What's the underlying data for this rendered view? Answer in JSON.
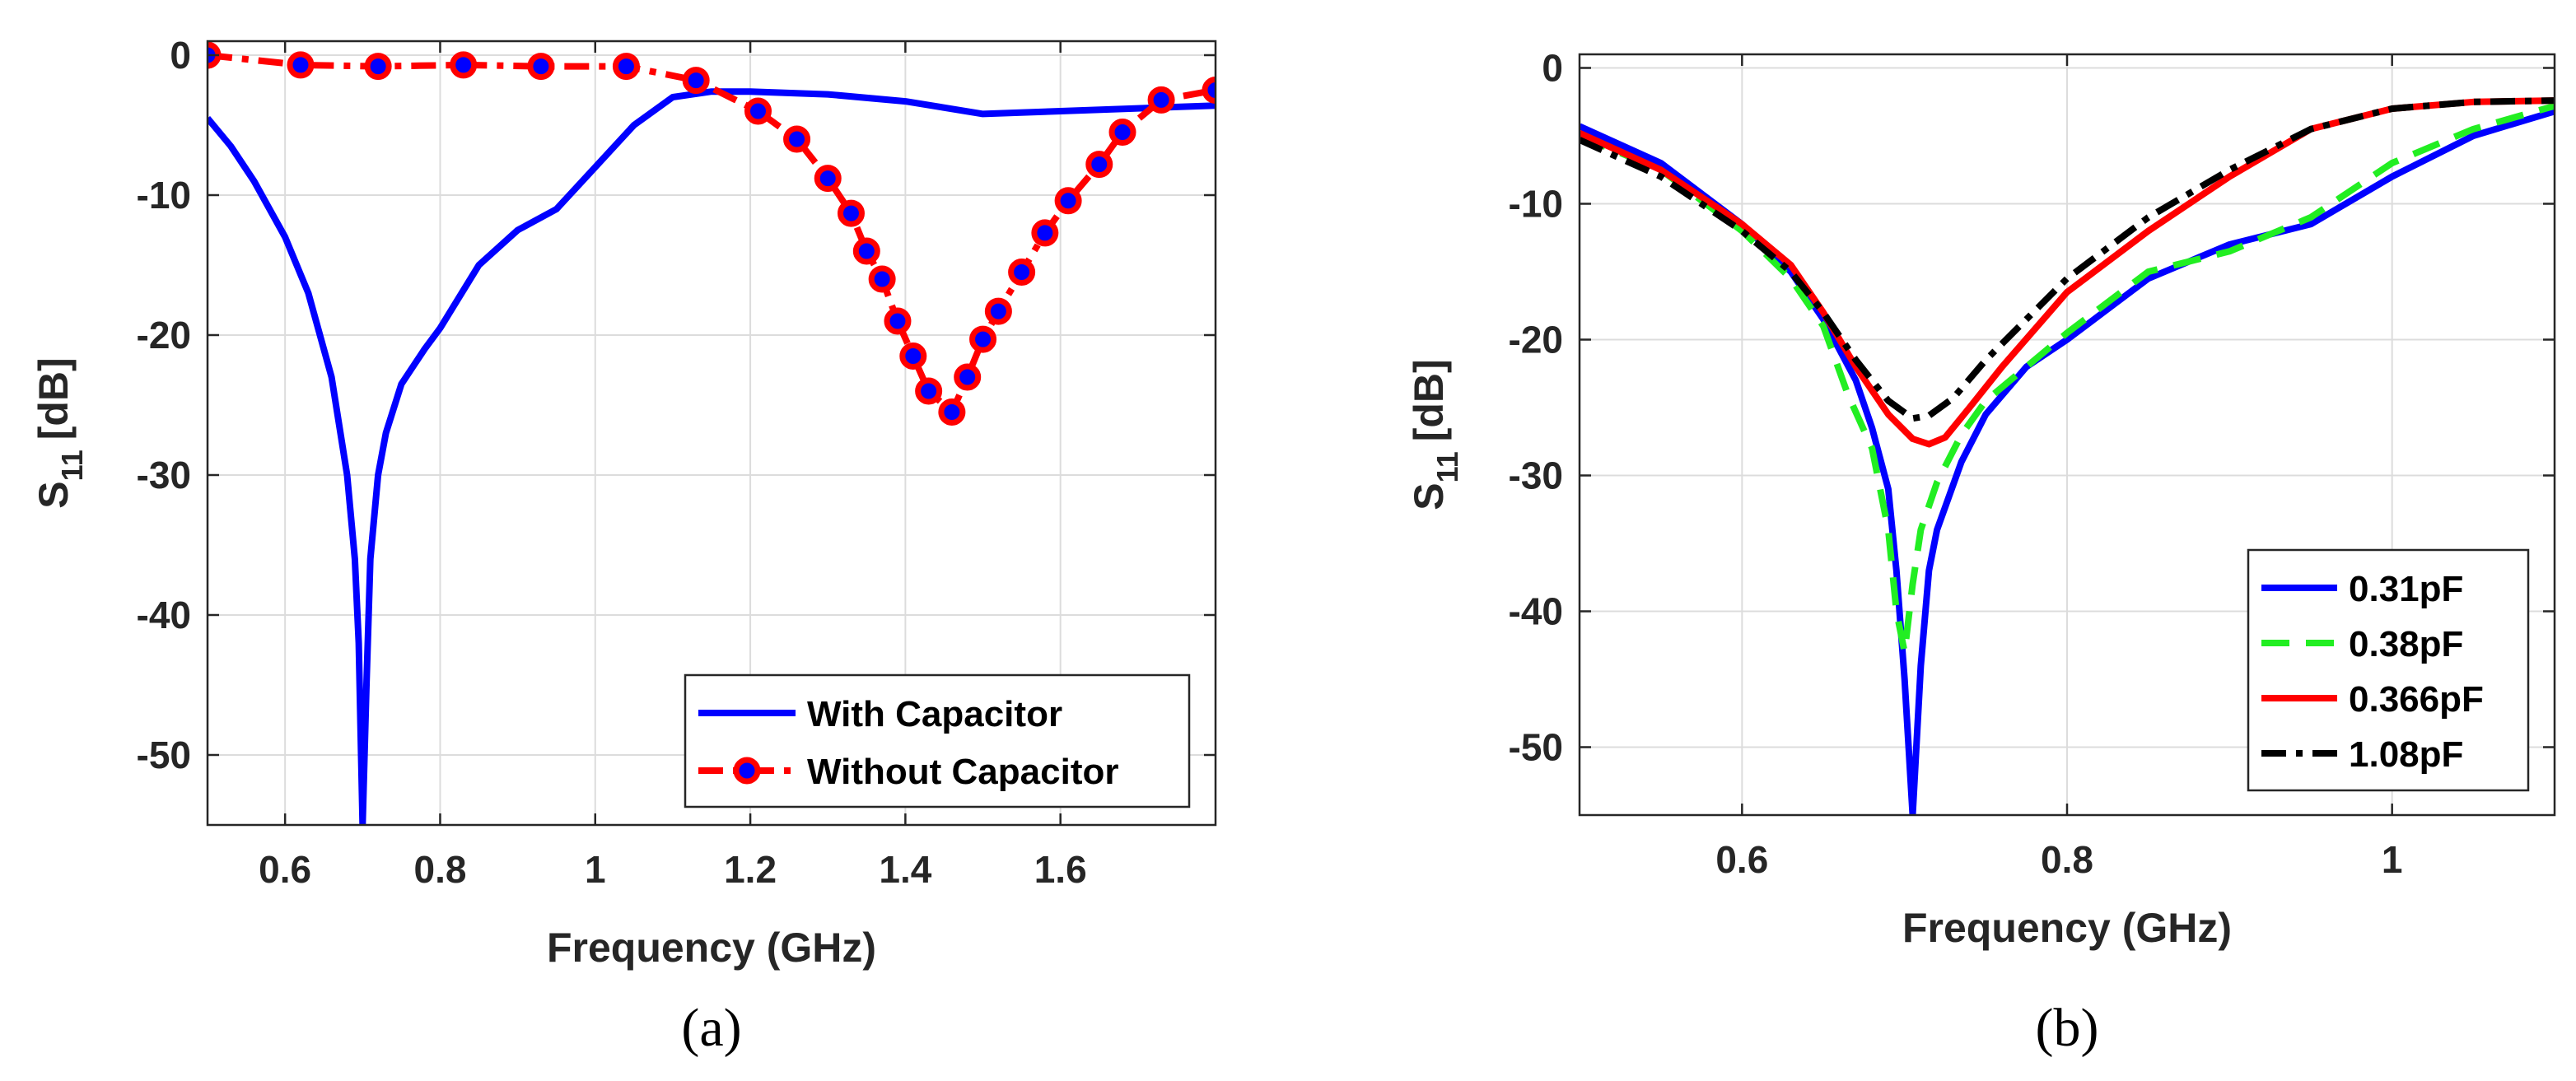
{
  "chart_data": [
    {
      "panel": "a",
      "type": "line",
      "caption": "(a)",
      "xlabel": "Frequency (GHz)",
      "ylabel": "S",
      "ylabel_sub": "11",
      "ylabel_unit": "[dB]",
      "xlim": [
        0.5,
        1.8
      ],
      "ylim": [
        -55,
        1
      ],
      "xticks": [
        0.6,
        0.8,
        1,
        1.2,
        1.4,
        1.6
      ],
      "xtick_labels": [
        "0.6",
        "0.8",
        "1",
        "1.2",
        "1.4",
        "1.6"
      ],
      "yticks": [
        0,
        -10,
        -20,
        -30,
        -40,
        -50
      ],
      "ytick_labels": [
        "0",
        "-10",
        "-20",
        "-30",
        "-40",
        "-50"
      ],
      "grid": true,
      "legend_position": "bottom-right",
      "series": [
        {
          "name": "With Capacitor",
          "color": "#0000ff",
          "style": "solid",
          "points": [
            [
              0.5,
              -4.5
            ],
            [
              0.53,
              -6.5
            ],
            [
              0.56,
              -9
            ],
            [
              0.6,
              -13
            ],
            [
              0.63,
              -17
            ],
            [
              0.66,
              -23
            ],
            [
              0.68,
              -30
            ],
            [
              0.69,
              -36
            ],
            [
              0.695,
              -42
            ],
            [
              0.7,
              -55
            ],
            [
              0.705,
              -45
            ],
            [
              0.71,
              -36
            ],
            [
              0.72,
              -30
            ],
            [
              0.73,
              -27
            ],
            [
              0.75,
              -23.5
            ],
            [
              0.78,
              -21
            ],
            [
              0.8,
              -19.5
            ],
            [
              0.85,
              -15
            ],
            [
              0.9,
              -12.5
            ],
            [
              0.95,
              -11
            ],
            [
              1.0,
              -8
            ],
            [
              1.05,
              -5
            ],
            [
              1.1,
              -3
            ],
            [
              1.15,
              -2.6
            ],
            [
              1.2,
              -2.6
            ],
            [
              1.3,
              -2.8
            ],
            [
              1.4,
              -3.3
            ],
            [
              1.5,
              -4.2
            ],
            [
              1.6,
              -4
            ],
            [
              1.7,
              -3.8
            ],
            [
              1.8,
              -3.6
            ]
          ]
        },
        {
          "name": "Without Capacitor",
          "color": "#ff0000",
          "marker_color": "#0000ff",
          "style": "dashdot",
          "marker": "circle",
          "points": [
            [
              0.5,
              0
            ],
            [
              0.62,
              -0.7
            ],
            [
              0.72,
              -0.8
            ],
            [
              0.83,
              -0.7
            ],
            [
              0.93,
              -0.8
            ],
            [
              1.04,
              -0.8
            ],
            [
              1.13,
              -1.8
            ],
            [
              1.21,
              -4
            ],
            [
              1.26,
              -6
            ],
            [
              1.3,
              -8.8
            ],
            [
              1.33,
              -11.3
            ],
            [
              1.35,
              -14
            ],
            [
              1.37,
              -16
            ],
            [
              1.39,
              -19
            ],
            [
              1.41,
              -21.5
            ],
            [
              1.43,
              -24
            ],
            [
              1.46,
              -25.5
            ],
            [
              1.48,
              -23
            ],
            [
              1.5,
              -20.3
            ],
            [
              1.52,
              -18.3
            ],
            [
              1.55,
              -15.5
            ],
            [
              1.58,
              -12.7
            ],
            [
              1.61,
              -10.4
            ],
            [
              1.65,
              -7.8
            ],
            [
              1.68,
              -5.5
            ],
            [
              1.73,
              -3.2
            ],
            [
              1.8,
              -2.5
            ]
          ]
        }
      ]
    },
    {
      "panel": "b",
      "type": "line",
      "caption": "(b)",
      "xlabel": "Frequency (GHz)",
      "ylabel": "S",
      "ylabel_sub": "11",
      "ylabel_unit": "[dB]",
      "xlim": [
        0.5,
        1.1
      ],
      "ylim": [
        -55,
        1
      ],
      "xticks": [
        0.6,
        0.8,
        1
      ],
      "xtick_labels": [
        "0.6",
        "0.8",
        "1"
      ],
      "yticks": [
        0,
        -10,
        -20,
        -30,
        -40,
        -50
      ],
      "ytick_labels": [
        "0",
        "-10",
        "-20",
        "-30",
        "-40",
        "-50"
      ],
      "grid": true,
      "legend_position": "bottom-right",
      "series": [
        {
          "name": "0.31pF",
          "color": "#0000ff",
          "style": "solid",
          "points": [
            [
              0.5,
              -4.3
            ],
            [
              0.55,
              -7
            ],
            [
              0.6,
              -11.5
            ],
            [
              0.63,
              -15
            ],
            [
              0.65,
              -18.5
            ],
            [
              0.67,
              -23
            ],
            [
              0.68,
              -26.5
            ],
            [
              0.69,
              -31
            ],
            [
              0.695,
              -37
            ],
            [
              0.7,
              -45
            ],
            [
              0.705,
              -55
            ],
            [
              0.71,
              -44
            ],
            [
              0.715,
              -37
            ],
            [
              0.72,
              -34
            ],
            [
              0.735,
              -29
            ],
            [
              0.75,
              -25.5
            ],
            [
              0.775,
              -22
            ],
            [
              0.8,
              -20
            ],
            [
              0.85,
              -15.5
            ],
            [
              0.9,
              -13
            ],
            [
              0.95,
              -11.5
            ],
            [
              1.0,
              -8
            ],
            [
              1.05,
              -5
            ],
            [
              1.1,
              -3.2
            ]
          ]
        },
        {
          "name": "0.38pF",
          "color": "#22ee22",
          "style": "dashed",
          "points": [
            [
              0.5,
              -5
            ],
            [
              0.55,
              -7.5
            ],
            [
              0.6,
              -12
            ],
            [
              0.63,
              -15.5
            ],
            [
              0.65,
              -19
            ],
            [
              0.665,
              -24
            ],
            [
              0.68,
              -28
            ],
            [
              0.69,
              -34
            ],
            [
              0.695,
              -40
            ],
            [
              0.7,
              -43
            ],
            [
              0.705,
              -38
            ],
            [
              0.71,
              -34
            ],
            [
              0.72,
              -30.5
            ],
            [
              0.735,
              -27
            ],
            [
              0.75,
              -24.5
            ],
            [
              0.775,
              -22
            ],
            [
              0.8,
              -19.5
            ],
            [
              0.85,
              -15
            ],
            [
              0.9,
              -13.5
            ],
            [
              0.95,
              -11
            ],
            [
              1.0,
              -7
            ],
            [
              1.05,
              -4.5
            ],
            [
              1.1,
              -2.8
            ]
          ]
        },
        {
          "name": "0.366pF",
          "color": "#ff0000",
          "style": "solid",
          "points": [
            [
              0.5,
              -4.8
            ],
            [
              0.55,
              -7.5
            ],
            [
              0.6,
              -11.5
            ],
            [
              0.63,
              -14.5
            ],
            [
              0.65,
              -18
            ],
            [
              0.67,
              -22
            ],
            [
              0.69,
              -25.5
            ],
            [
              0.705,
              -27.3
            ],
            [
              0.715,
              -27.7
            ],
            [
              0.725,
              -27.2
            ],
            [
              0.74,
              -25
            ],
            [
              0.76,
              -22
            ],
            [
              0.8,
              -16.5
            ],
            [
              0.85,
              -12
            ],
            [
              0.9,
              -8
            ],
            [
              0.95,
              -4.5
            ],
            [
              1.0,
              -3
            ],
            [
              1.05,
              -2.5
            ],
            [
              1.1,
              -2.4
            ]
          ]
        },
        {
          "name": "1.08pF",
          "color": "#000000",
          "style": "dashdot",
          "points": [
            [
              0.5,
              -5.3
            ],
            [
              0.55,
              -8
            ],
            [
              0.6,
              -12
            ],
            [
              0.63,
              -15
            ],
            [
              0.65,
              -18
            ],
            [
              0.67,
              -21.5
            ],
            [
              0.69,
              -24.5
            ],
            [
              0.705,
              -25.8
            ],
            [
              0.715,
              -25.6
            ],
            [
              0.73,
              -24.3
            ],
            [
              0.75,
              -21.5
            ],
            [
              0.8,
              -15.5
            ],
            [
              0.85,
              -11
            ],
            [
              0.9,
              -7.5
            ],
            [
              0.95,
              -4.5
            ],
            [
              1.0,
              -3
            ],
            [
              1.05,
              -2.5
            ],
            [
              1.1,
              -2.4
            ]
          ]
        }
      ]
    }
  ]
}
